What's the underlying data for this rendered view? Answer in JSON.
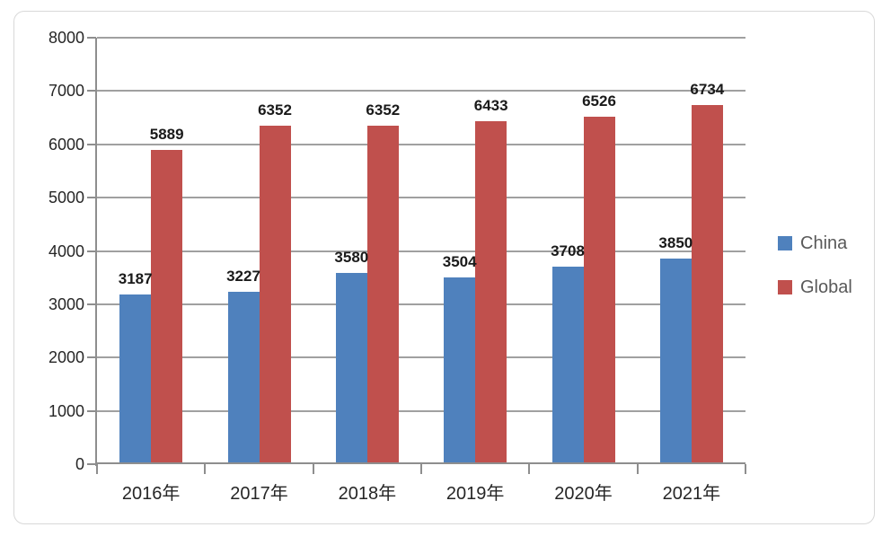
{
  "chart_data": {
    "type": "bar",
    "title": "",
    "xlabel": "",
    "ylabel": "",
    "categories": [
      "2016年",
      "2017年",
      "2018年",
      "2019年",
      "2020年",
      "2021年"
    ],
    "series": [
      {
        "name": "China",
        "color": "#4F81BD",
        "values": [
          3187,
          3227,
          3580,
          3504,
          3708,
          3850
        ]
      },
      {
        "name": "Global",
        "color": "#C0504D",
        "values": [
          5889,
          6352,
          6352,
          6433,
          6526,
          6734
        ]
      }
    ],
    "ylim": [
      0,
      8000
    ],
    "ytick_interval": 1000,
    "yticks": [
      0,
      1000,
      2000,
      3000,
      4000,
      5000,
      6000,
      7000,
      8000
    ],
    "grid": true,
    "data_labels": true,
    "legend_position": "right"
  },
  "colors": {
    "background": "#ffffff",
    "frame_border": "#d8d8d8",
    "gridline": "#a0a0a0",
    "axis_line": "#8e8e8e",
    "axis_text": "#262626",
    "data_label_text": "#1a1a1a",
    "legend_text": "#595959"
  }
}
